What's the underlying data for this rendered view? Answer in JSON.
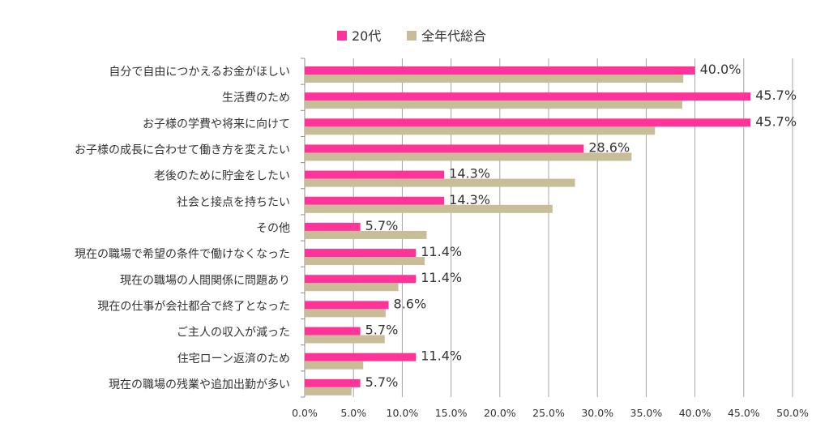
{
  "chart_data": {
    "type": "bar",
    "orientation": "horizontal",
    "categories": [
      "自分で自由につかえるお金がほしい",
      "生活費のため",
      "お子様の学費や将来に向けて",
      "お子様の成長に合わせて働き方を変えたい",
      "老後のために貯金をしたい",
      "社会と接点を持ちたい",
      "その他",
      "現在の職場で希望の条件で働けなくなった",
      "現在の職場の人間関係に問題あり",
      "現在の仕事が会社都合で終了となった",
      "ご主人の収入が減った",
      "住宅ローン返済のため",
      "現在の職場の残業や追加出勤が多い"
    ],
    "series": [
      {
        "name": "20代",
        "color": "#ff3399",
        "values": [
          40.0,
          45.7,
          45.7,
          28.6,
          14.3,
          14.3,
          5.7,
          11.4,
          11.4,
          8.6,
          5.7,
          11.4,
          5.7
        ],
        "data_labels": [
          "40.0%",
          "45.7%",
          "45.7%",
          "28.6%",
          "14.3%",
          "14.3%",
          "5.7%",
          "11.4%",
          "11.4%",
          "8.6%",
          "5.7%",
          "11.4%",
          "5.7%"
        ]
      },
      {
        "name": "全年代総合",
        "color": "#c8bd98",
        "values": [
          38.8,
          38.7,
          35.9,
          33.5,
          27.7,
          25.4,
          12.5,
          12.3,
          9.6,
          8.3,
          8.2,
          6.0,
          4.8
        ]
      }
    ],
    "xlim": [
      0,
      50
    ],
    "xticks": [
      "0.0%",
      "5.0%",
      "10.0%",
      "15.0%",
      "20.0%",
      "25.0%",
      "30.0%",
      "35.0%",
      "40.0%",
      "45.0%",
      "50.0%"
    ],
    "grid": "vertical",
    "legend": "top-center"
  }
}
